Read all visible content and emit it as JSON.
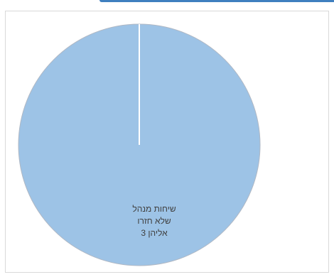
{
  "chart_data": {
    "type": "pie",
    "title": "",
    "slices": [
      {
        "label": "שיחות מנהל שלא חזרו אליהן",
        "value": 3
      }
    ],
    "data_label_lines": [
      "שיחות מנהל",
      "שלא חזרו",
      "אליהן  3"
    ],
    "colors": {
      "slice_fill": "#9dc3e6",
      "slice_stroke": "#ffffff",
      "frame": "#d9d9d9",
      "accent": "#3f7fbf"
    },
    "legend": "none"
  }
}
